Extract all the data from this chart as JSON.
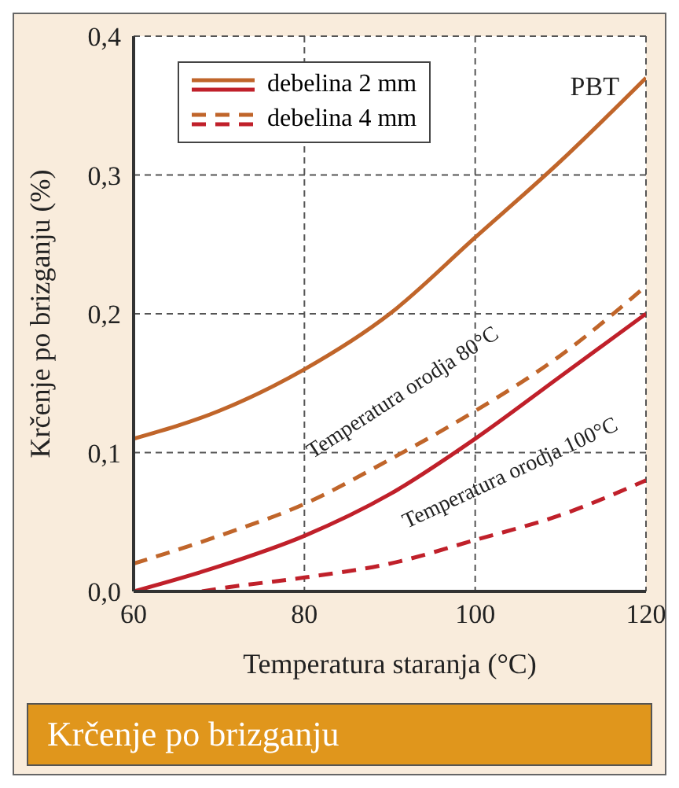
{
  "chart_data": {
    "type": "line",
    "title": "Krčenje po brizganju",
    "xlabel": "Temperatura staranja (°C)",
    "ylabel": "Krčenje po brizganju (%)",
    "x": [
      60,
      70,
      80,
      90,
      100,
      110,
      120
    ],
    "series": [
      {
        "name": "debelina 2 mm",
        "color": "#c0652a",
        "line_style": "solid",
        "values": [
          0.11,
          0.13,
          0.16,
          0.2,
          0.255,
          0.31,
          0.37
        ]
      },
      {
        "name": "debelina 4 mm",
        "color": "#c0652a",
        "line_style": "dashed",
        "values": [
          0.02,
          0.04,
          0.063,
          0.095,
          0.13,
          0.17,
          0.22
        ]
      },
      {
        "color": "#c0202a",
        "line_style": "solid",
        "values": [
          0.0,
          0.018,
          0.04,
          0.07,
          0.11,
          0.155,
          0.2
        ]
      },
      {
        "color": "#c0202a",
        "line_style": "dashed",
        "x": [
          68,
          70,
          80,
          90,
          100,
          110,
          120
        ],
        "values": [
          0.0,
          0.002,
          0.01,
          0.02,
          0.037,
          0.055,
          0.08
        ]
      }
    ],
    "xlim": [
      60,
      120
    ],
    "xticks": [
      60,
      80,
      100,
      120
    ],
    "ylim": [
      0,
      0.4
    ],
    "yticks": [
      {
        "value": 0,
        "label": "0,0"
      },
      {
        "value": 0.1,
        "label": "0,1"
      },
      {
        "value": 0.2,
        "label": "0,2"
      },
      {
        "value": 0.3,
        "label": "0,3"
      },
      {
        "value": 0.4,
        "label": "0,4"
      }
    ],
    "grid": true,
    "legend": "top left",
    "marker": "none",
    "annotations": [
      "PBT",
      "Temperatura orodja 80°C",
      "Temperatura orodja 100°C"
    ]
  }
}
